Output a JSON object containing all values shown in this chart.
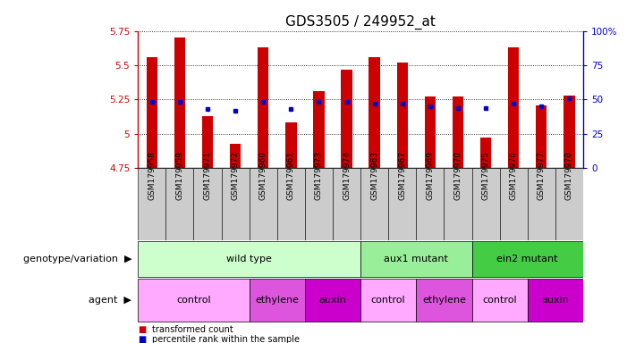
{
  "title": "GDS3505 / 249952_at",
  "samples": [
    "GSM179958",
    "GSM179959",
    "GSM179971",
    "GSM179972",
    "GSM179960",
    "GSM179961",
    "GSM179973",
    "GSM179974",
    "GSM179963",
    "GSM179967",
    "GSM179969",
    "GSM179970",
    "GSM179975",
    "GSM179976",
    "GSM179977",
    "GSM179978"
  ],
  "transformed_counts": [
    5.56,
    5.7,
    5.13,
    4.93,
    5.63,
    5.08,
    5.31,
    5.47,
    5.56,
    5.52,
    5.27,
    5.27,
    4.97,
    5.63,
    5.21,
    5.28
  ],
  "percentile_ranks": [
    48,
    48,
    43,
    42,
    48,
    43,
    48,
    48,
    47,
    47,
    45,
    44,
    44,
    47,
    45,
    51
  ],
  "ylim_left": [
    4.75,
    5.75
  ],
  "ylim_right": [
    0,
    100
  ],
  "yticks_left": [
    4.75,
    5.0,
    5.25,
    5.5,
    5.75
  ],
  "yticks_right": [
    0,
    25,
    50,
    75,
    100
  ],
  "ytick_labels_left": [
    "4.75",
    "5",
    "5.25",
    "5.5",
    "5.75"
  ],
  "ytick_labels_right": [
    "0",
    "25",
    "50",
    "75",
    "100%"
  ],
  "bar_color": "#cc0000",
  "dot_color": "#0000cc",
  "bar_bottom": 4.75,
  "genotype_groups": [
    {
      "label": "wild type",
      "start": 0,
      "end": 7,
      "color": "#ccffcc"
    },
    {
      "label": "aux1 mutant",
      "start": 8,
      "end": 11,
      "color": "#99ee99"
    },
    {
      "label": "ein2 mutant",
      "start": 12,
      "end": 15,
      "color": "#44cc44"
    }
  ],
  "agent_groups": [
    {
      "label": "control",
      "start": 0,
      "end": 3,
      "color": "#ffaaff"
    },
    {
      "label": "ethylene",
      "start": 4,
      "end": 5,
      "color": "#dd55dd"
    },
    {
      "label": "auxin",
      "start": 6,
      "end": 7,
      "color": "#cc00cc"
    },
    {
      "label": "control",
      "start": 8,
      "end": 9,
      "color": "#ffaaff"
    },
    {
      "label": "ethylene",
      "start": 10,
      "end": 11,
      "color": "#dd55dd"
    },
    {
      "label": "control",
      "start": 12,
      "end": 13,
      "color": "#ffaaff"
    },
    {
      "label": "auxin",
      "start": 14,
      "end": 15,
      "color": "#cc00cc"
    }
  ],
  "sample_box_color": "#cccccc",
  "bg_color": "#ffffff",
  "bar_width": 0.4,
  "title_fontsize": 11,
  "tick_fontsize": 7.5,
  "sample_fontsize": 6.5,
  "annotation_fontsize": 8,
  "row_label_fontsize": 8
}
